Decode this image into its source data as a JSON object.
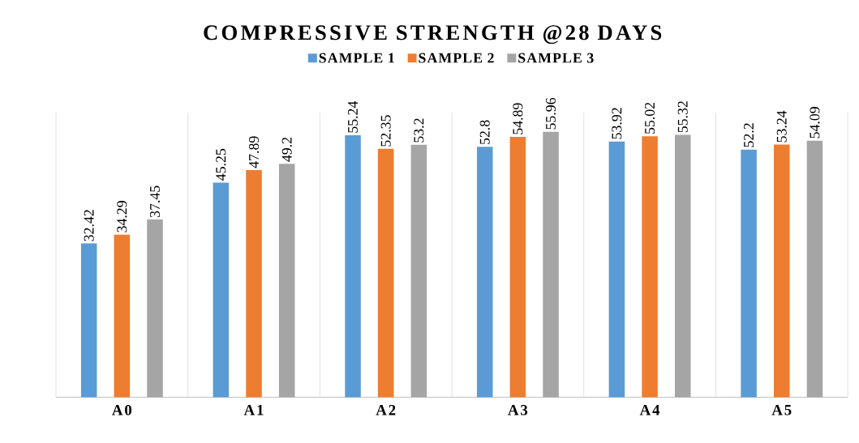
{
  "chart_data": {
    "type": "bar",
    "title": "COMPRESSIVE STRENGTH @28 DAYS",
    "categories": [
      "A0",
      "A1",
      "A2",
      "A3",
      "A4",
      "A5"
    ],
    "series": [
      {
        "name": "SAMPLE 1",
        "color": "#5b9bd5",
        "values": [
          32.42,
          45.25,
          55.24,
          52.8,
          53.92,
          52.2
        ]
      },
      {
        "name": "SAMPLE 2",
        "color": "#ed7d31",
        "values": [
          34.29,
          47.89,
          52.35,
          54.89,
          55.02,
          53.24
        ]
      },
      {
        "name": "SAMPLE 3",
        "color": "#a5a5a5",
        "values": [
          37.45,
          49.2,
          53.2,
          55.96,
          55.32,
          54.09
        ]
      }
    ],
    "ylim": [
      0,
      60
    ],
    "data_labels": true,
    "legend": "top",
    "grid": "x",
    "tick_labels": "x"
  }
}
